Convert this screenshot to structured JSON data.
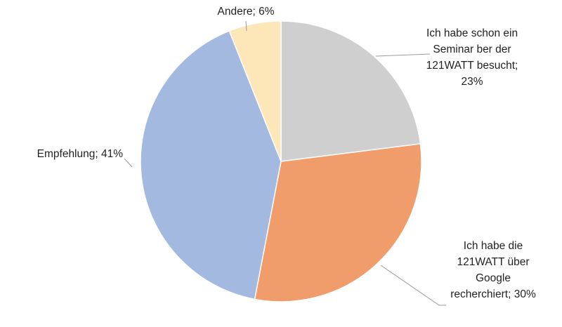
{
  "chart_data": {
    "type": "pie",
    "title": "",
    "slices": [
      {
        "label_lines": [
          "Ich habe schon ein",
          "Seminar ber der",
          "121WATT besucht;",
          "23%"
        ],
        "value": 23,
        "color": "#cfcfcf"
      },
      {
        "label_lines": [
          "Ich habe die",
          "121WATT über",
          "Google",
          "recherchiert; 30%"
        ],
        "value": 30,
        "color": "#f09d6b"
      },
      {
        "label_lines": [
          "Empfehlung; 41%"
        ],
        "value": 41,
        "color": "#a3b9df"
      },
      {
        "label_lines": [
          "Andere; 6%"
        ],
        "value": 6,
        "color": "#fde7b8"
      }
    ],
    "start_angle_deg": 0,
    "direction": "clockwise",
    "slice_border_color": "#ffffff",
    "leader_line_color": "#9a9a9a"
  }
}
